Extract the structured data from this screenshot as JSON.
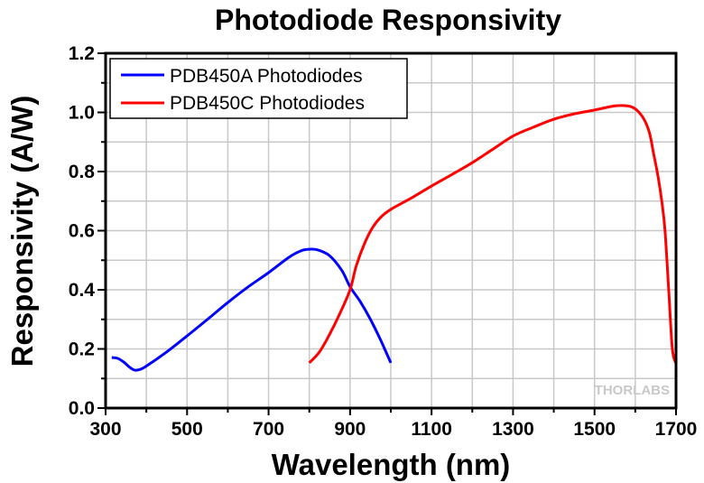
{
  "chart_data": {
    "type": "line",
    "title": "Photodiode Responsivity",
    "xlabel": "Wavelength (nm)",
    "ylabel": "Responsivity (A/W)",
    "xlim": [
      300,
      1700
    ],
    "ylim": [
      0.0,
      1.2
    ],
    "xticks": [
      300,
      500,
      700,
      900,
      1100,
      1300,
      1500,
      1700
    ],
    "xtick_labels": [
      "300",
      "500",
      "700",
      "900",
      "1100",
      "1300",
      "1500",
      "1700"
    ],
    "yticks": [
      0.0,
      0.2,
      0.4,
      0.6,
      0.8,
      1.0,
      1.2
    ],
    "ytick_labels": [
      "0.0",
      "0.2",
      "0.4",
      "0.6",
      "0.8",
      "1.0",
      "1.2"
    ],
    "grid": true,
    "legend_position": "top-left",
    "watermark": "THORLABS",
    "series": [
      {
        "name": "PDB450A Photodiodes",
        "color": "#0000ff",
        "x": [
          315,
          330,
          345,
          360,
          372,
          385,
          400,
          450,
          500,
          550,
          600,
          650,
          700,
          750,
          780,
          800,
          820,
          850,
          880,
          900,
          925,
          950,
          975,
          1000
        ],
        "y": [
          0.171,
          0.168,
          0.155,
          0.137,
          0.128,
          0.131,
          0.142,
          0.19,
          0.244,
          0.3,
          0.357,
          0.41,
          0.458,
          0.51,
          0.532,
          0.537,
          0.535,
          0.515,
          0.465,
          0.41,
          0.36,
          0.3,
          0.23,
          0.153
        ]
      },
      {
        "name": "PDB450C Photodiodes",
        "color": "#ff0000",
        "x": [
          800,
          825,
          850,
          875,
          900,
          915,
          935,
          955,
          975,
          1000,
          1050,
          1100,
          1150,
          1200,
          1250,
          1300,
          1350,
          1400,
          1450,
          1500,
          1550,
          1580,
          1600,
          1620,
          1635,
          1645,
          1655,
          1665,
          1673,
          1682,
          1691,
          1700
        ],
        "y": [
          0.153,
          0.19,
          0.25,
          0.32,
          0.4,
          0.48,
          0.555,
          0.61,
          0.645,
          0.672,
          0.71,
          0.751,
          0.79,
          0.83,
          0.875,
          0.92,
          0.95,
          0.977,
          0.995,
          1.008,
          1.022,
          1.022,
          1.012,
          0.98,
          0.93,
          0.86,
          0.79,
          0.7,
          0.6,
          0.4,
          0.2,
          0.15
        ]
      }
    ]
  }
}
